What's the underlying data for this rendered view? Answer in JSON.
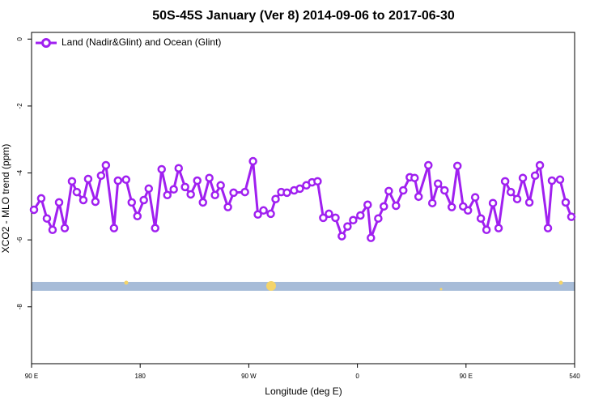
{
  "chart_data": {
    "type": "line",
    "title": "50S-45S January (Ver 8)   2014-09-06 to 2017-06-30",
    "x_label": "Longitude (deg E)",
    "y_label": "XCO2 - MLO trend (ppm)",
    "xlim": [
      90,
      540
    ],
    "xticks": [
      {
        "value": 90,
        "label": "90 E"
      },
      180,
      {
        "value": 270,
        "label": "90 W"
      },
      {
        "value": 360,
        "label": "0"
      },
      {
        "value": 450,
        "label": "90 E"
      },
      540
    ],
    "ylim": [
      -9.7,
      0.2
    ],
    "yticks": [
      0,
      -2,
      -4,
      -6,
      -8
    ],
    "legend": "top-left",
    "x": [
      92.0,
      98.0,
      102.7,
      107.4,
      112.8,
      117.5,
      123.5,
      127.5,
      132.9,
      136.9,
      142.9,
      147.6,
      151.6,
      158.3,
      161.6,
      168.3,
      173.0,
      177.7,
      183.0,
      187.1,
      192.4,
      197.8,
      202.5,
      207.8,
      211.9,
      217.2,
      221.9,
      227.3,
      232.0,
      237.3,
      242.0,
      246.7,
      252.7,
      257.4,
      266.8,
      273.5,
      277.5,
      282.2,
      288.2,
      292.2,
      296.9,
      301.6,
      307.6,
      312.3,
      317.7,
      322.4,
      327.0,
      331.7,
      336.4,
      341.8,
      347.1,
      351.8,
      356.5,
      362.5,
      368.5,
      371.2,
      377.3,
      381.9,
      386.0,
      392.0,
      398.0,
      403.4,
      407.4,
      410.7,
      418.8,
      422.1,
      426.8,
      432.2,
      438.2,
      442.9,
      447.6,
      451.6,
      457.6,
      462.3,
      467.0,
      472.3,
      477.0,
      482.4,
      487.1,
      492.4,
      497.1,
      502.5,
      507.2,
      511.2,
      517.9,
      521.2,
      527.9,
      532.6,
      537.3
    ],
    "series": [
      {
        "name": "Land (Nadir&Glint) and Ocean (Glint)",
        "color": "#a020f0",
        "values": [
          -5.1,
          -4.76,
          -5.36,
          -5.7,
          -4.88,
          -5.65,
          -4.25,
          -4.57,
          -4.81,
          -4.18,
          -4.86,
          -4.08,
          -3.77,
          -5.65,
          -4.23,
          -4.2,
          -4.88,
          -5.29,
          -4.81,
          -4.47,
          -5.65,
          -3.89,
          -4.66,
          -4.49,
          -3.86,
          -4.42,
          -4.64,
          -4.23,
          -4.88,
          -4.15,
          -4.66,
          -4.37,
          -5.02,
          -4.59,
          -4.57,
          -3.65,
          -5.24,
          -5.12,
          -5.22,
          -4.78,
          -4.57,
          -4.59,
          -4.52,
          -4.47,
          -4.37,
          -4.28,
          -4.25,
          -5.34,
          -5.22,
          -5.34,
          -5.89,
          -5.6,
          -5.41,
          -5.27,
          -4.95,
          -5.94,
          -5.36,
          -5.0,
          -4.54,
          -4.98,
          -4.52,
          -4.13,
          -4.15,
          -4.71,
          -3.77,
          -4.9,
          -4.32,
          -4.52,
          -5.02,
          -3.79,
          -5.0,
          -5.12,
          -4.73,
          -5.36,
          -5.7,
          -4.9,
          -5.65,
          -4.25,
          -4.57,
          -4.78,
          -4.15,
          -4.88,
          -4.08,
          -3.77,
          -5.65,
          -4.23,
          -4.2,
          -4.88,
          -5.31
        ]
      }
    ]
  }
}
